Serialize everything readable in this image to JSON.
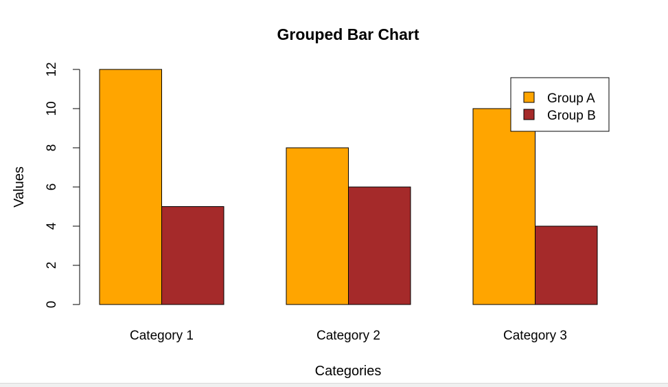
{
  "chart_data": {
    "type": "bar",
    "title": "Grouped Bar Chart",
    "xlabel": "Categories",
    "ylabel": "Values",
    "categories": [
      "Category 1",
      "Category 2",
      "Category 3"
    ],
    "series": [
      {
        "name": "Group A",
        "values": [
          12,
          8,
          10
        ],
        "color": "#FFA500"
      },
      {
        "name": "Group B",
        "values": [
          5,
          6,
          4
        ],
        "color": "#A52A2A"
      }
    ],
    "ylim": [
      0,
      12
    ],
    "yticks": [
      "0",
      "2",
      "4",
      "6",
      "8",
      "10",
      "12"
    ],
    "grid": false,
    "legend_position": "top-right"
  }
}
